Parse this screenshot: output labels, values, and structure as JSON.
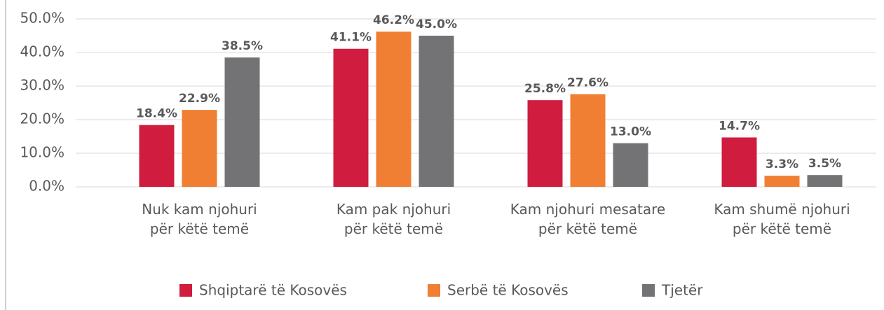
{
  "chart_data": {
    "type": "bar",
    "categories": [
      "Nuk kam njohuri\npër këtë temë",
      "Kam pak njohuri\npër këtë temë",
      "Kam njohuri mesatare\npër këtë temë",
      "Kam shumë njohuri\npër këtë temë"
    ],
    "series": [
      {
        "name": "Shqiptarë të Kosovës",
        "color": "#d01c3f",
        "values": [
          18.4,
          41.1,
          25.8,
          14.7
        ],
        "value_labels": [
          "18.4%",
          "41.1%",
          "25.8%",
          "14.7%"
        ]
      },
      {
        "name": "Serbë të Kosovës",
        "color": "#f07f33",
        "values": [
          22.9,
          46.2,
          27.6,
          3.3
        ],
        "value_labels": [
          "22.9%",
          "46.2%",
          "27.6%",
          "3.3%"
        ]
      },
      {
        "name": "Tjetër",
        "color": "#737376",
        "values": [
          38.5,
          45.0,
          13.0,
          3.5
        ],
        "value_labels": [
          "38.5%",
          "45.0%",
          "13.0%",
          "3.5%"
        ]
      }
    ],
    "ylim": [
      0,
      50
    ],
    "yticks": [
      {
        "value": 0,
        "label": "0.0%"
      },
      {
        "value": 10,
        "label": "10.0%"
      },
      {
        "value": 20,
        "label": "20.0%"
      },
      {
        "value": 30,
        "label": "30.0%"
      },
      {
        "value": 40,
        "label": "40.0%"
      },
      {
        "value": 50,
        "label": "50.0%"
      }
    ],
    "grid": true,
    "legend": "bottom"
  }
}
